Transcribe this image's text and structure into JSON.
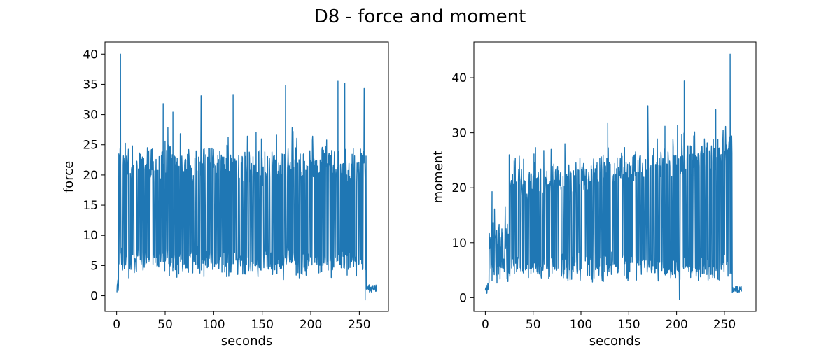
{
  "figure": {
    "suptitle": "D8 - force and moment"
  },
  "chart_data": [
    {
      "type": "line",
      "title": "",
      "xlabel": "seconds",
      "ylabel": "force",
      "xlim": [
        -12,
        280
      ],
      "ylim": [
        -2.6,
        42
      ],
      "xticks": [
        0,
        50,
        100,
        150,
        200,
        250
      ],
      "yticks": [
        0,
        5,
        10,
        15,
        20,
        25,
        30,
        35,
        40
      ],
      "color": "#1f77b4",
      "series_summary": {
        "x_start": 0,
        "x_end": 268,
        "active_range_seconds": [
          2,
          257
        ],
        "typical_low": 3,
        "typical_high": 22,
        "peaks": [
          {
            "x": 4,
            "y": 40.0
          },
          {
            "x": 48,
            "y": 31.8
          },
          {
            "x": 58,
            "y": 30.4
          },
          {
            "x": 87,
            "y": 33.1
          },
          {
            "x": 120,
            "y": 33.2
          },
          {
            "x": 174,
            "y": 34.8
          },
          {
            "x": 228,
            "y": 35.5
          },
          {
            "x": 235,
            "y": 35.2
          },
          {
            "x": 255,
            "y": 34.3
          }
        ],
        "min": {
          "x": 256,
          "y": -0.7
        },
        "tail_level": 1.2
      }
    },
    {
      "type": "line",
      "title": "",
      "xlabel": "seconds",
      "ylabel": "moment",
      "xlim": [
        -12,
        283
      ],
      "ylim": [
        -2.5,
        46.5
      ],
      "xticks": [
        0,
        50,
        100,
        150,
        200,
        250
      ],
      "yticks": [
        0,
        10,
        20,
        30,
        40
      ],
      "color": "#1f77b4",
      "series_summary": {
        "x_start": 0,
        "x_end": 268,
        "active_range_seconds": [
          4,
          258
        ],
        "typical_low": 3,
        "typical_high_start": 12,
        "typical_high_end": 27,
        "peaks": [
          {
            "x": 7,
            "y": 19.3
          },
          {
            "x": 25,
            "y": 26.0
          },
          {
            "x": 128,
            "y": 31.8
          },
          {
            "x": 170,
            "y": 34.9
          },
          {
            "x": 208,
            "y": 39.4
          },
          {
            "x": 241,
            "y": 34.2
          },
          {
            "x": 256,
            "y": 44.3
          }
        ],
        "min": {
          "x": 203,
          "y": -0.3
        },
        "tail_level": 1.5
      }
    }
  ]
}
